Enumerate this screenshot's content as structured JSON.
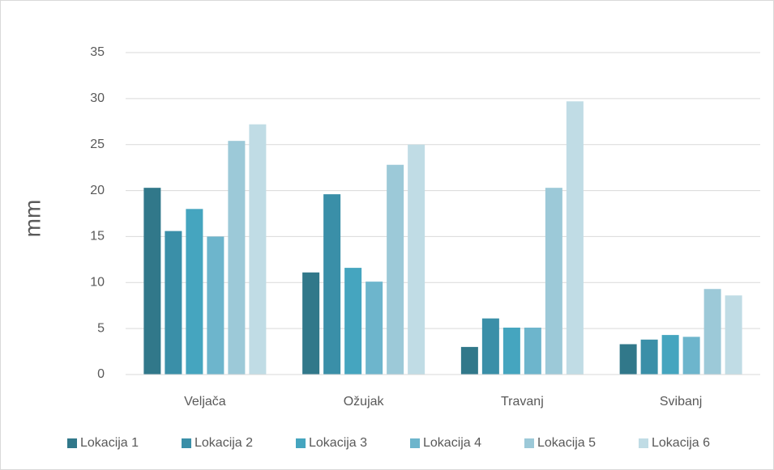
{
  "chart_data": {
    "type": "bar",
    "y_label": "mm",
    "categories": [
      "Veljača",
      "Ožujak",
      "Travanj",
      "Svibanj"
    ],
    "series": [
      {
        "name": "Lokacija 1",
        "color": "#31788a",
        "values": [
          20.3,
          11.1,
          3.0,
          3.3
        ]
      },
      {
        "name": "Lokacija 2",
        "color": "#3a8fa8",
        "values": [
          15.6,
          19.6,
          6.1,
          3.8
        ]
      },
      {
        "name": "Lokacija 3",
        "color": "#45a5bf",
        "values": [
          18.0,
          11.6,
          5.1,
          4.3
        ]
      },
      {
        "name": "Lokacija 4",
        "color": "#6db5cc",
        "values": [
          15.0,
          10.1,
          5.1,
          4.1
        ]
      },
      {
        "name": "Lokacija 5",
        "color": "#9cc9d8",
        "values": [
          25.4,
          22.8,
          20.3,
          9.3
        ]
      },
      {
        "name": "Lokacija 6",
        "color": "#c0dce5",
        "values": [
          27.2,
          25.0,
          29.7,
          8.6
        ]
      }
    ],
    "ylim": [
      0,
      35
    ],
    "yticks": [
      0,
      5,
      10,
      15,
      20,
      25,
      30,
      35
    ],
    "grid": true,
    "legend": "bottom"
  }
}
